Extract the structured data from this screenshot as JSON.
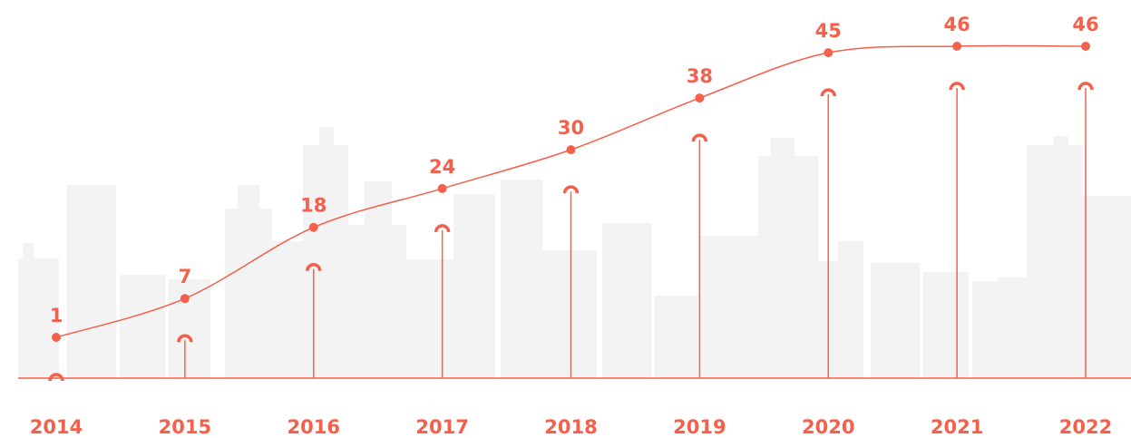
{
  "chart_data": {
    "type": "line",
    "categories": [
      "2014",
      "2015",
      "2016",
      "2017",
      "2018",
      "2019",
      "2020",
      "2021",
      "2022"
    ],
    "values": [
      1,
      7,
      18,
      24,
      30,
      38,
      45,
      46,
      46
    ],
    "color": "#f4604b"
  }
}
